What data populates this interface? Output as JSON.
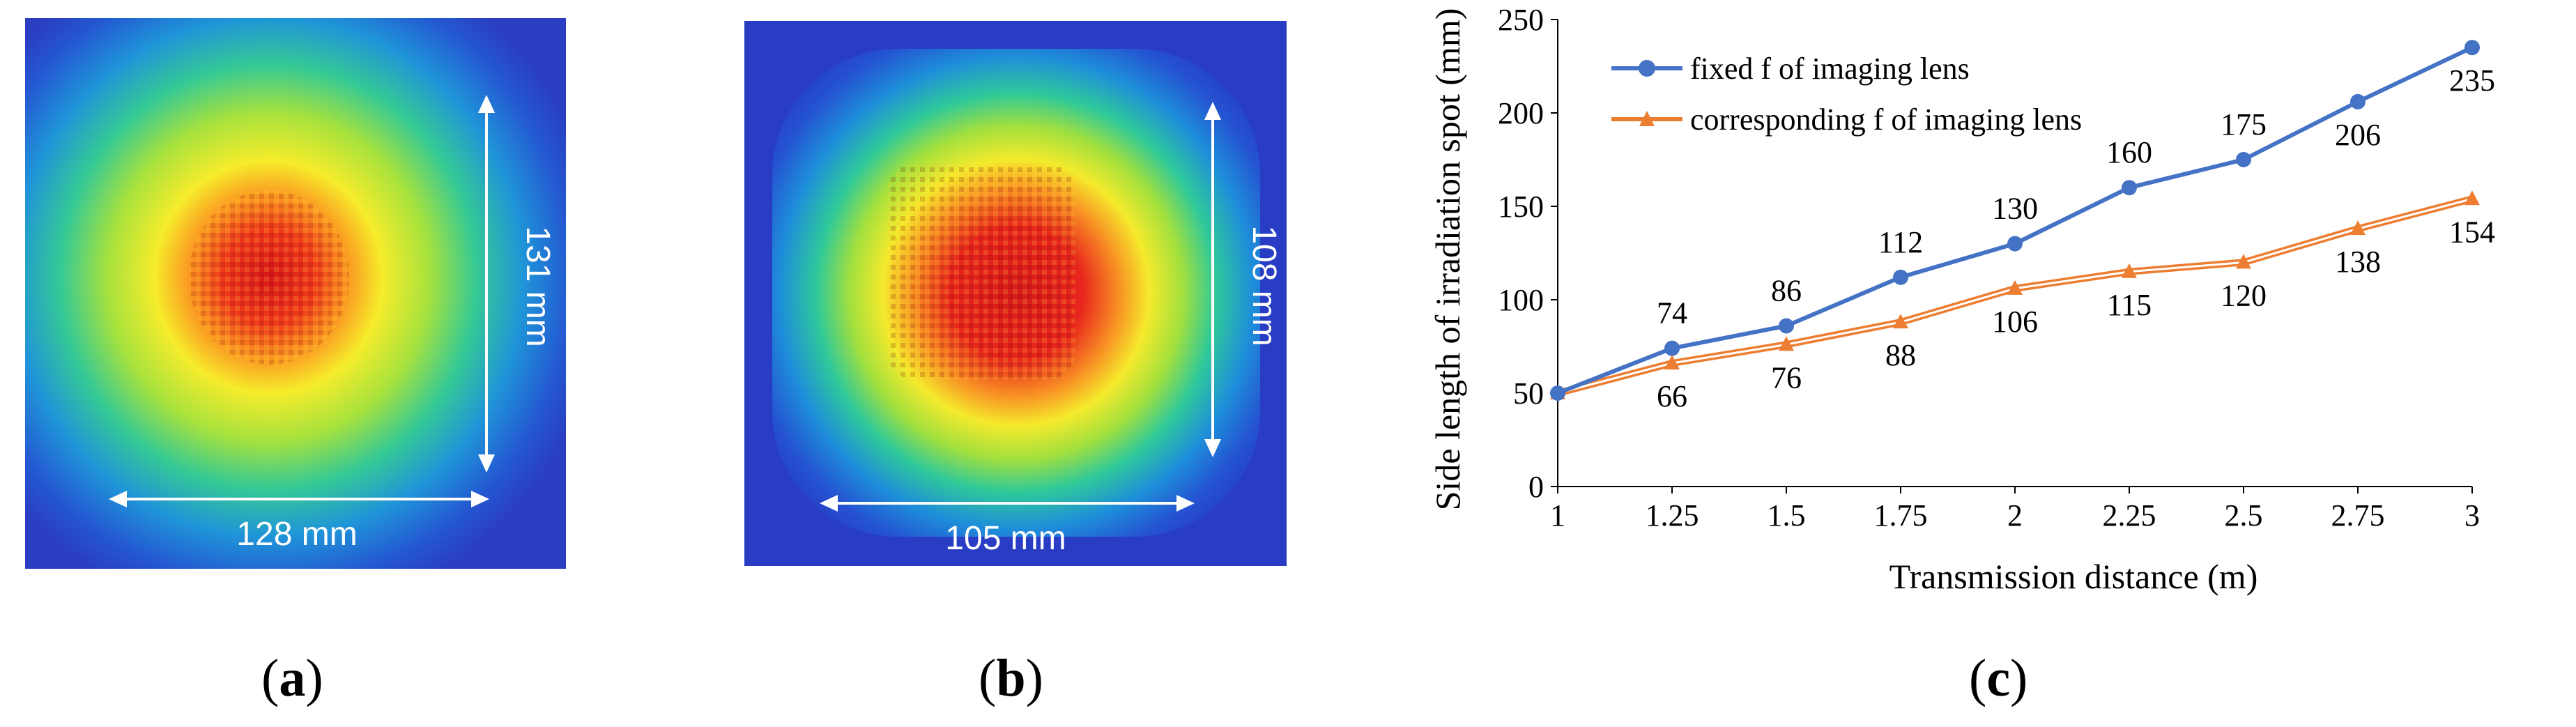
{
  "panels": {
    "a": {
      "caption_open": "(",
      "caption_letter": "a",
      "caption_close": ")",
      "width_label": "128 mm",
      "height_label": "131 mm"
    },
    "b": {
      "caption_open": "(",
      "caption_letter": "b",
      "caption_close": ")",
      "width_label": "105 mm",
      "height_label": "108 mm"
    },
    "c": {
      "caption_open": "(",
      "caption_letter": "c",
      "caption_close": ")"
    }
  },
  "colors": {
    "series_fixed": "#4472C4",
    "series_corresponding": "#ED7D31",
    "heat_bg": "#1f3fbf",
    "heat_core": "#d81e1e"
  },
  "chart_data": {
    "type": "line",
    "xlabel": "Transmission distance (m)",
    "ylabel": "Side length of irradiation spot (mm)",
    "categories": [
      "1",
      "1.25",
      "1.5",
      "1.75",
      "2",
      "2.25",
      "2.5",
      "2.75",
      "3"
    ],
    "x": [
      1,
      1.25,
      1.5,
      1.75,
      2,
      2.25,
      2.5,
      2.75,
      3
    ],
    "xlim": [
      1,
      3
    ],
    "ylim": [
      0,
      250
    ],
    "yticks": [
      0,
      50,
      100,
      150,
      200,
      250
    ],
    "grid": false,
    "legend_position": "top-left",
    "series": [
      {
        "name": "fixed f of imaging lens",
        "marker": "circle",
        "values": [
          50,
          74,
          86,
          112,
          130,
          160,
          175,
          206,
          235
        ],
        "labels": [
          "",
          "74",
          "86",
          "112",
          "130",
          "160",
          "175",
          "206",
          "235"
        ],
        "label_side": [
          "above",
          "above",
          "above",
          "above",
          "above",
          "above",
          "above",
          "below",
          "below"
        ]
      },
      {
        "name": "corresponding f of imaging lens",
        "marker": "triangle",
        "values": [
          50,
          66,
          76,
          88,
          106,
          115,
          120,
          138,
          154
        ],
        "labels": [
          "",
          "66",
          "76",
          "88",
          "106",
          "115",
          "120",
          "138",
          "154"
        ],
        "label_side": [
          "below",
          "below",
          "below",
          "below",
          "below",
          "below",
          "below",
          "below",
          "below"
        ]
      }
    ]
  }
}
